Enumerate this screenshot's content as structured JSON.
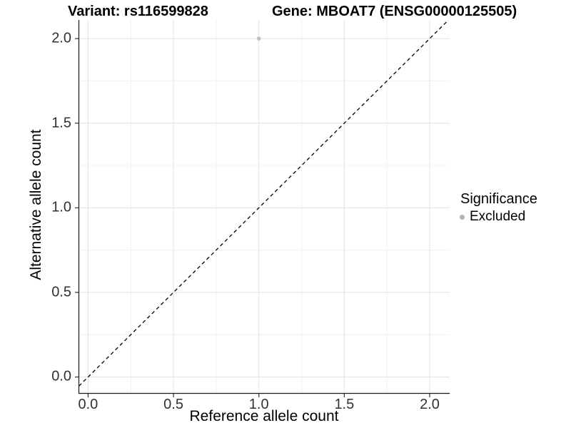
{
  "header": {
    "title_variant": "Variant: rs116599828",
    "title_gene": "Gene: MBOAT7 (ENSG00000125505)"
  },
  "chart_data": {
    "type": "scatter",
    "title": "Variant: rs116599828   Gene: MBOAT7 (ENSG00000125505)",
    "xlabel": "Reference allele count",
    "ylabel": "Alternative allele count",
    "xlim": [
      -0.054,
      2.117
    ],
    "ylim": [
      -0.097,
      2.11
    ],
    "xticks": {
      "values": [
        0.0,
        0.5,
        1.0,
        1.5,
        2.0
      ],
      "labels": [
        "0.0",
        "0.5",
        "1.0",
        "1.5",
        "2.0"
      ]
    },
    "yticks": {
      "values": [
        0.0,
        0.5,
        1.0,
        1.5,
        2.0
      ],
      "labels": [
        "0.0",
        "0.5",
        "1.0",
        "1.5",
        "2.0"
      ]
    },
    "minor_tick_step": 0.25,
    "grid": true,
    "points": [
      {
        "x": 1.0,
        "y": 2.0,
        "series": "Excluded"
      }
    ],
    "reference_line": {
      "kind": "identity",
      "slope": 1,
      "intercept": 0,
      "style": "dashed",
      "color": "#000000"
    },
    "legend": {
      "position": "right",
      "title": "Significance",
      "items": [
        {
          "label": "Excluded",
          "color": "#bebebe",
          "marker": "circle"
        }
      ]
    },
    "colors": {
      "point": "#c0c0c0",
      "legend_key": "#b3b3b3",
      "grid_major": "#e3e3e3",
      "grid_minor": "#f0f0f0",
      "axis_line": "#1a1a1a",
      "tick_mark": "#333333",
      "tick_label": "#313131"
    }
  }
}
